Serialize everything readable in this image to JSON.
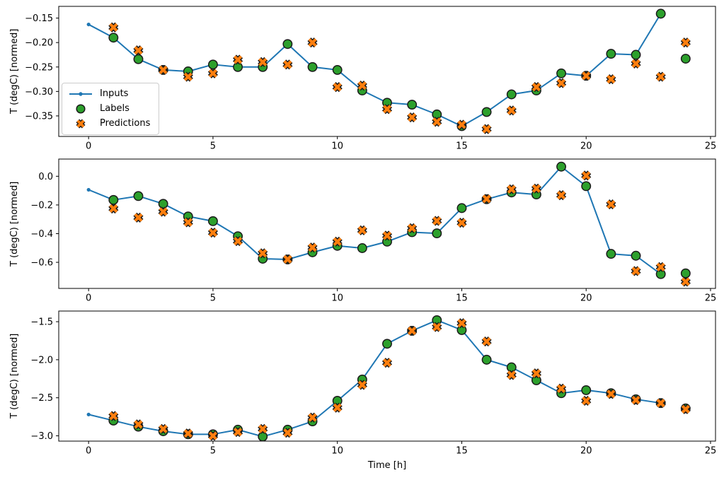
{
  "figure": {
    "colors": {
      "inputs": "#1f77b4",
      "labels": "#2ca02c",
      "predictions": "#ff7f0e",
      "marker_edge": "#1a1a1a",
      "spine": "#000000",
      "legend_border": "#cccccc"
    },
    "legend": {
      "position": "upper-left-subplot-1",
      "items": [
        {
          "label": "Inputs",
          "marker": "line-dot"
        },
        {
          "label": "Labels",
          "marker": "circle"
        },
        {
          "label": "Predictions",
          "marker": "x-cross"
        }
      ]
    }
  },
  "chart_data": [
    {
      "type": "line",
      "title": "",
      "ylabel": "T (degC) [normed]",
      "xlabel": "",
      "xlim": [
        -1.2,
        25.2
      ],
      "ylim": [
        -0.392,
        -0.126
      ],
      "grid": false,
      "xticks": {
        "values": [
          0,
          5,
          10,
          15,
          20,
          25
        ],
        "labels": [
          "0",
          "5",
          "10",
          "15",
          "20",
          "25"
        ]
      },
      "yticks": {
        "values": [
          -0.15,
          -0.2,
          -0.25,
          -0.3,
          -0.35
        ],
        "labels": [
          "−0.15",
          "−0.20",
          "−0.25",
          "−0.30",
          "−0.35"
        ]
      },
      "series": [
        {
          "name": "Inputs",
          "kind": "line",
          "x": [
            0,
            1,
            2,
            3,
            4,
            5,
            6,
            7,
            8,
            9,
            10,
            11,
            12,
            13,
            14,
            15,
            16,
            17,
            18,
            19,
            20,
            21,
            22,
            23
          ],
          "y": [
            -0.163,
            -0.19,
            -0.234,
            -0.256,
            -0.259,
            -0.245,
            -0.25,
            -0.25,
            -0.203,
            -0.25,
            -0.256,
            -0.298,
            -0.323,
            -0.327,
            -0.347,
            -0.371,
            -0.342,
            -0.306,
            -0.298,
            -0.263,
            -0.268,
            -0.223,
            -0.225,
            -0.141
          ]
        },
        {
          "name": "Labels",
          "kind": "scatter-circle",
          "x": [
            1,
            2,
            3,
            4,
            5,
            6,
            7,
            8,
            9,
            10,
            11,
            12,
            13,
            14,
            15,
            16,
            17,
            18,
            19,
            20,
            21,
            22,
            23,
            24
          ],
          "y": [
            -0.19,
            -0.234,
            -0.256,
            -0.259,
            -0.245,
            -0.25,
            -0.25,
            -0.203,
            -0.25,
            -0.256,
            -0.298,
            -0.323,
            -0.327,
            -0.347,
            -0.371,
            -0.342,
            -0.306,
            -0.298,
            -0.263,
            -0.268,
            -0.223,
            -0.225,
            -0.141,
            -0.233
          ]
        },
        {
          "name": "Predictions",
          "kind": "scatter-x",
          "x": [
            1,
            2,
            3,
            4,
            5,
            6,
            7,
            8,
            9,
            10,
            11,
            12,
            13,
            14,
            15,
            16,
            17,
            18,
            19,
            20,
            21,
            22,
            23,
            24
          ],
          "y": [
            -0.169,
            -0.216,
            -0.256,
            -0.27,
            -0.263,
            -0.235,
            -0.24,
            -0.245,
            -0.2,
            -0.291,
            -0.288,
            -0.336,
            -0.353,
            -0.362,
            -0.368,
            -0.377,
            -0.339,
            -0.291,
            -0.283,
            -0.268,
            -0.275,
            -0.243,
            -0.27,
            -0.2
          ]
        }
      ]
    },
    {
      "type": "line",
      "title": "",
      "ylabel": "T (degC) [normed]",
      "xlabel": "",
      "xlim": [
        -1.2,
        25.2
      ],
      "ylim": [
        -0.782,
        0.12
      ],
      "grid": false,
      "xticks": {
        "values": [
          0,
          5,
          10,
          15,
          20,
          25
        ],
        "labels": [
          "0",
          "5",
          "10",
          "15",
          "20",
          "25"
        ]
      },
      "yticks": {
        "values": [
          0.0,
          -0.2,
          -0.4,
          -0.6
        ],
        "labels": [
          "0.0",
          "−0.2",
          "−0.4",
          "−0.6"
        ]
      },
      "series": [
        {
          "name": "Inputs",
          "kind": "line",
          "x": [
            0,
            1,
            2,
            3,
            4,
            5,
            6,
            7,
            8,
            9,
            10,
            11,
            12,
            13,
            14,
            15,
            16,
            17,
            18,
            19,
            20,
            21,
            22,
            23
          ],
          "y": [
            -0.094,
            -0.165,
            -0.138,
            -0.192,
            -0.28,
            -0.313,
            -0.418,
            -0.575,
            -0.58,
            -0.53,
            -0.485,
            -0.501,
            -0.456,
            -0.39,
            -0.398,
            -0.222,
            -0.16,
            -0.113,
            -0.127,
            0.067,
            -0.069,
            -0.541,
            -0.554,
            -0.682
          ]
        },
        {
          "name": "Labels",
          "kind": "scatter-circle",
          "x": [
            1,
            2,
            3,
            4,
            5,
            6,
            7,
            8,
            9,
            10,
            11,
            12,
            13,
            14,
            15,
            16,
            17,
            18,
            19,
            20,
            21,
            22,
            23,
            24
          ],
          "y": [
            -0.165,
            -0.138,
            -0.192,
            -0.28,
            -0.313,
            -0.418,
            -0.575,
            -0.58,
            -0.53,
            -0.485,
            -0.501,
            -0.456,
            -0.39,
            -0.398,
            -0.222,
            -0.16,
            -0.113,
            -0.127,
            0.067,
            -0.069,
            -0.541,
            -0.554,
            -0.682,
            -0.677
          ]
        },
        {
          "name": "Predictions",
          "kind": "scatter-x",
          "x": [
            1,
            2,
            3,
            4,
            5,
            6,
            7,
            8,
            9,
            10,
            11,
            12,
            13,
            14,
            15,
            16,
            17,
            18,
            19,
            20,
            21,
            22,
            23,
            24
          ],
          "y": [
            -0.225,
            -0.288,
            -0.247,
            -0.321,
            -0.393,
            -0.452,
            -0.537,
            -0.579,
            -0.497,
            -0.456,
            -0.377,
            -0.414,
            -0.362,
            -0.311,
            -0.324,
            -0.158,
            -0.091,
            -0.086,
            -0.132,
            0.005,
            -0.196,
            -0.661,
            -0.633,
            -0.735
          ]
        }
      ]
    },
    {
      "type": "line",
      "title": "",
      "ylabel": "T (degC) [normed]",
      "xlabel": "Time [h]",
      "xlim": [
        -1.2,
        25.2
      ],
      "ylim": [
        -3.07,
        -1.36
      ],
      "grid": false,
      "xticks": {
        "values": [
          0,
          5,
          10,
          15,
          20,
          25
        ],
        "labels": [
          "0",
          "5",
          "10",
          "15",
          "20",
          "25"
        ]
      },
      "yticks": {
        "values": [
          -1.5,
          -2.0,
          -2.5,
          -3.0
        ],
        "labels": [
          "−1.5",
          "−2.0",
          "−2.5",
          "−3.0"
        ]
      },
      "series": [
        {
          "name": "Inputs",
          "kind": "line",
          "x": [
            0,
            1,
            2,
            3,
            4,
            5,
            6,
            7,
            8,
            9,
            10,
            11,
            12,
            13,
            14,
            15,
            16,
            17,
            18,
            19,
            20,
            21,
            22,
            23
          ],
          "y": [
            -2.72,
            -2.8,
            -2.88,
            -2.94,
            -2.98,
            -2.98,
            -2.92,
            -3.01,
            -2.92,
            -2.81,
            -2.54,
            -2.26,
            -1.79,
            -1.62,
            -1.48,
            -1.61,
            -2.0,
            -2.1,
            -2.27,
            -2.44,
            -2.4,
            -2.44,
            -2.52,
            -2.57
          ]
        },
        {
          "name": "Labels",
          "kind": "scatter-circle",
          "x": [
            1,
            2,
            3,
            4,
            5,
            6,
            7,
            8,
            9,
            10,
            11,
            12,
            13,
            14,
            15,
            16,
            17,
            18,
            19,
            20,
            21,
            22,
            23,
            24
          ],
          "y": [
            -2.8,
            -2.88,
            -2.94,
            -2.98,
            -2.98,
            -2.92,
            -3.01,
            -2.92,
            -2.81,
            -2.54,
            -2.26,
            -1.79,
            -1.62,
            -1.48,
            -1.61,
            -2.0,
            -2.1,
            -2.27,
            -2.44,
            -2.4,
            -2.44,
            -2.52,
            -2.57,
            -2.64
          ]
        },
        {
          "name": "Predictions",
          "kind": "scatter-x",
          "x": [
            1,
            2,
            3,
            4,
            5,
            6,
            7,
            8,
            9,
            10,
            11,
            12,
            13,
            14,
            15,
            16,
            17,
            18,
            19,
            20,
            21,
            22,
            23,
            24
          ],
          "y": [
            -2.74,
            -2.85,
            -2.91,
            -2.97,
            -3.0,
            -2.95,
            -2.91,
            -2.96,
            -2.76,
            -2.63,
            -2.33,
            -2.04,
            -1.62,
            -1.57,
            -1.52,
            -1.76,
            -2.2,
            -2.18,
            -2.38,
            -2.54,
            -2.45,
            -2.53,
            -2.57,
            -2.65
          ]
        }
      ]
    }
  ]
}
